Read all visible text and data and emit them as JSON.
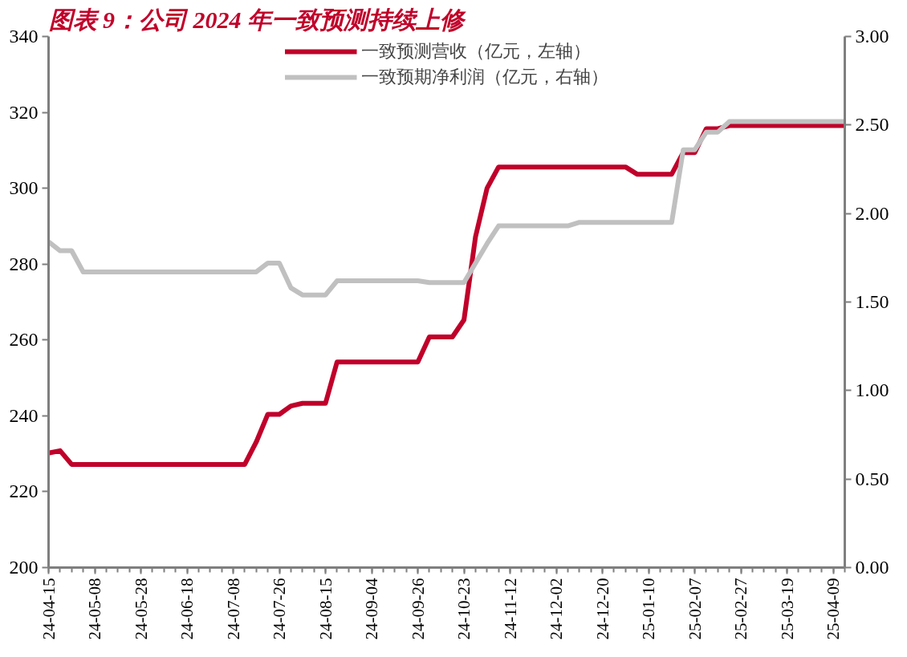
{
  "chart_data": {
    "type": "line",
    "title": "图表 9：公司 2024 年一致预测持续上修",
    "categories": [
      "24-04-15",
      null,
      null,
      null,
      "24-05-08",
      null,
      null,
      null,
      "24-05-28",
      null,
      null,
      null,
      "24-06-18",
      null,
      null,
      null,
      "24-07-08",
      null,
      null,
      null,
      "24-07-26",
      null,
      null,
      null,
      "24-08-15",
      null,
      null,
      null,
      "24-09-04",
      null,
      null,
      null,
      "24-09-26",
      null,
      null,
      null,
      "24-10-23",
      null,
      null,
      null,
      "24-11-12",
      null,
      null,
      null,
      "24-12-02",
      null,
      null,
      null,
      "24-12-20",
      null,
      null,
      null,
      "25-01-10",
      null,
      null,
      null,
      "25-02-07",
      null,
      null,
      null,
      "25-02-27",
      null,
      null,
      null,
      "25-03-19",
      null,
      null,
      null,
      "25-04-09",
      null
    ],
    "series": [
      {
        "name": "一致预测营收（亿元，左轴）",
        "color": "#c0002a",
        "values": [
          230.2,
          230.8,
          227.2,
          227.2,
          227.2,
          227.2,
          227.2,
          227.2,
          227.2,
          227.2,
          227.2,
          227.2,
          227.2,
          227.2,
          227.2,
          227.2,
          227.2,
          227.2,
          233.1,
          240.4,
          240.4,
          242.6,
          243.3,
          243.3,
          243.3,
          254.2,
          254.2,
          254.2,
          254.2,
          254.2,
          254.2,
          254.2,
          254.2,
          260.8,
          260.8,
          260.8,
          265.3,
          287.2,
          300,
          305.6,
          305.6,
          305.6,
          305.6,
          305.6,
          305.6,
          305.6,
          305.6,
          305.6,
          305.6,
          305.6,
          305.6,
          303.7,
          303.7,
          303.7,
          303.7,
          309.4,
          309.4,
          315.7,
          315.7,
          316.5,
          316.5,
          316.5,
          316.5,
          316.5,
          316.5,
          316.5,
          316.5,
          316.5,
          316.5,
          316.5
        ]
      },
      {
        "name": "一致预期净利润（亿元，右轴）",
        "color": "#c0c0c0",
        "axis": "y2",
        "values": [
          1.84,
          1.79,
          1.79,
          1.67,
          1.67,
          1.67,
          1.67,
          1.67,
          1.67,
          1.67,
          1.67,
          1.67,
          1.67,
          1.67,
          1.67,
          1.67,
          1.67,
          1.67,
          1.67,
          1.72,
          1.72,
          1.58,
          1.54,
          1.54,
          1.54,
          1.62,
          1.62,
          1.62,
          1.62,
          1.62,
          1.62,
          1.62,
          1.62,
          1.61,
          1.61,
          1.61,
          1.61,
          1.72,
          1.83,
          1.93,
          1.93,
          1.93,
          1.93,
          1.93,
          1.93,
          1.93,
          1.95,
          1.95,
          1.95,
          1.95,
          1.95,
          1.95,
          1.95,
          1.95,
          1.95,
          2.36,
          2.36,
          2.46,
          2.46,
          2.52,
          2.52,
          2.52,
          2.52,
          2.52,
          2.52,
          2.52,
          2.52,
          2.52,
          2.52,
          2.52
        ]
      }
    ],
    "ylim": [
      200,
      340
    ],
    "yticks": [
      200,
      220,
      240,
      260,
      280,
      300,
      320,
      340
    ],
    "y2lim": [
      0,
      3
    ],
    "y2ticks": [
      {
        "value": 0,
        "label": "0.00"
      },
      {
        "value": 0.5,
        "label": "0.50"
      },
      {
        "value": 1,
        "label": "1.00"
      },
      {
        "value": 1.5,
        "label": "1.50"
      },
      {
        "value": 2,
        "label": "2.00"
      },
      {
        "value": 2.5,
        "label": "2.50"
      },
      {
        "value": 3,
        "label": "3.00"
      }
    ],
    "grid": false,
    "legend": "top",
    "line_style": "solid"
  }
}
